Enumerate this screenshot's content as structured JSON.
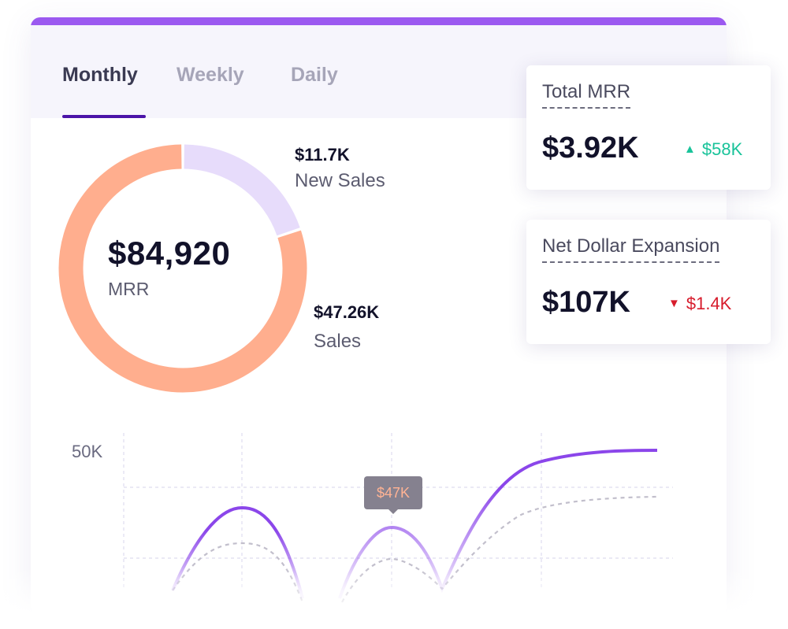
{
  "tabs": [
    {
      "label": "Monthly",
      "active": true
    },
    {
      "label": "Weekly",
      "active": false
    },
    {
      "label": "Daily",
      "active": false
    }
  ],
  "mrr_breakdown": {
    "total_value": "$84,920",
    "total_label": "MRR",
    "segments": [
      {
        "value_label": "$11.7K",
        "name": "New Sales",
        "value": 11.7,
        "color": "#e7dcfb"
      },
      {
        "value_label": "$47.26K",
        "name": "Sales",
        "value": 47.26,
        "color": "#ffae8e"
      }
    ]
  },
  "kpis": {
    "total_mrr": {
      "title": "Total MRR",
      "value": "$3.92K",
      "delta": "$58K",
      "direction": "up",
      "color": "#19c39a"
    },
    "net_dollar_expansion": {
      "title": "Net Dollar Expansion",
      "value": "$107K",
      "delta": "$1.4K",
      "direction": "down",
      "color": "#d71c2c"
    }
  },
  "chart": {
    "y_tick_label": "50K",
    "tooltip": "$47K",
    "colors": {
      "primary_line": "#8b46ea",
      "secondary_line": "#c2bfcc",
      "grid": "#dedcef"
    }
  }
}
